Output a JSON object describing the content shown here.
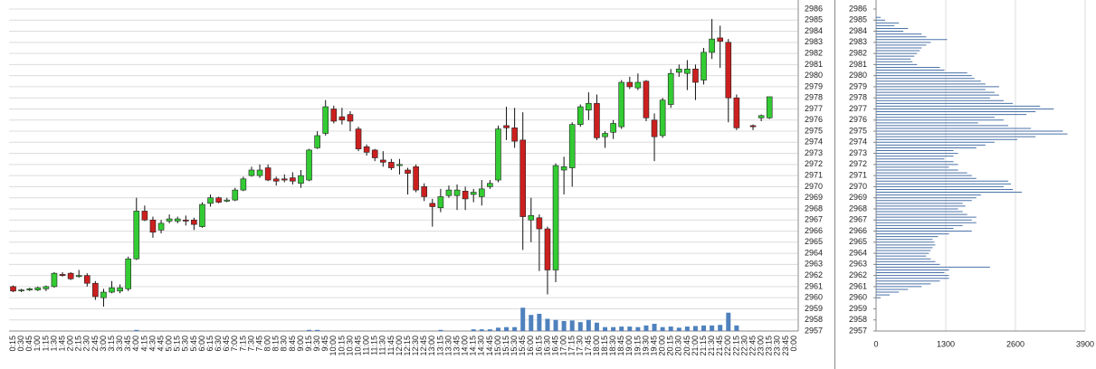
{
  "chart_data": [
    {
      "type": "candlestick",
      "categories": [
        "0:15",
        "0:30",
        "0:45",
        "1:00",
        "1:15",
        "1:30",
        "1:45",
        "2:00",
        "2:15",
        "2:30",
        "2:45",
        "3:00",
        "3:15",
        "3:30",
        "3:45",
        "4:00",
        "4:15",
        "4:30",
        "4:45",
        "5:00",
        "5:15",
        "5:30",
        "5:45",
        "6:00",
        "6:15",
        "6:30",
        "6:45",
        "7:00",
        "7:15",
        "7:30",
        "7:45",
        "8:00",
        "8:15",
        "8:30",
        "8:45",
        "9:00",
        "9:15",
        "9:30",
        "9:45",
        "10:00",
        "10:15",
        "10:30",
        "10:45",
        "11:00",
        "11:15",
        "11:30",
        "11:45",
        "12:00",
        "12:15",
        "12:30",
        "12:45",
        "13:00",
        "13:15",
        "13:30",
        "13:45",
        "14:00",
        "14:15",
        "14:30",
        "14:45",
        "15:00",
        "15:15",
        "15:30",
        "15:45",
        "16:00",
        "16:15",
        "16:30",
        "16:45",
        "17:00",
        "17:15",
        "17:30",
        "17:45",
        "18:00",
        "18:15",
        "18:30",
        "18:45",
        "19:00",
        "19:15",
        "19:30",
        "19:45",
        "20:00",
        "20:15",
        "20:30",
        "20:45",
        "21:00",
        "21:15",
        "21:30",
        "21:45",
        "22:00",
        "22:15",
        "22:30",
        "22:45",
        "23:00",
        "23:15",
        "23:30",
        "23:45",
        "0:00"
      ],
      "open": [
        2961.0,
        2960.7,
        2960.7,
        2960.7,
        2960.8,
        2961.0,
        2962.1,
        2962.2,
        2961.9,
        2962.0,
        2961.3,
        2960.0,
        2960.5,
        2960.6,
        2960.8,
        2963.5,
        2967.8,
        2967.0,
        2966.1,
        2966.9,
        2966.9,
        2967.0,
        2967.0,
        2966.4,
        2968.5,
        2969.0,
        2968.7,
        2968.8,
        2969.7,
        2971.0,
        2971.0,
        2971.7,
        2970.7,
        2970.7,
        2970.8,
        2970.3,
        2970.6,
        2973.5,
        2974.8,
        2977.0,
        2976.3,
        2976.5,
        2975.2,
        2973.6,
        2973.3,
        2972.4,
        2972.2,
        2971.9,
        2971.5,
        2971.8,
        2970.0,
        2968.5,
        2968.1,
        2969.2,
        2969.2,
        2969.6,
        2969.3,
        2969.1,
        2970.0,
        2970.6,
        2975.5,
        2975.3,
        2974.2,
        2967.0,
        2967.2,
        2966.2,
        2962.5,
        2971.5,
        2971.7,
        2975.6,
        2976.9,
        2977.5,
        2974.5,
        2974.9,
        2975.4,
        2979.4,
        2978.9,
        2979.5,
        2976.0,
        2974.6,
        2977.4,
        2980.3,
        2980.2,
        2980.6,
        2979.6,
        2982.1,
        2983.4,
        2983.0,
        2978.0,
        null,
        2975.5,
        2976.2,
        2976.2,
        null,
        null,
        null
      ],
      "high": [
        2961.1,
        2960.8,
        2960.9,
        2961.0,
        2961.1,
        2962.3,
        2962.3,
        2962.3,
        2962.5,
        2962.2,
        2961.5,
        2960.8,
        2961.5,
        2961.2,
        2963.7,
        2969.0,
        2968.3,
        2967.3,
        2967.0,
        2967.5,
        2967.3,
        2967.4,
        2967.2,
        2968.6,
        2969.3,
        2969.1,
        2969.0,
        2969.9,
        2970.9,
        2971.8,
        2972.0,
        2972.0,
        2970.9,
        2971.1,
        2971.3,
        2971.5,
        2973.4,
        2975.0,
        2977.8,
        2977.3,
        2977.1,
        2976.8,
        2975.4,
        2973.8,
        2973.4,
        2973.2,
        2972.5,
        2972.5,
        2971.7,
        2972.0,
        2970.3,
        2968.9,
        2969.8,
        2970.1,
        2970.2,
        2970.0,
        2969.8,
        2970.6,
        2970.6,
        2975.5,
        2977.2,
        2977.1,
        2976.7,
        2969.0,
        2967.5,
        2966.4,
        2972.1,
        2972.7,
        2975.8,
        2977.4,
        2978.5,
        2978.3,
        2975.0,
        2976.0,
        2979.6,
        2979.9,
        2980.2,
        2979.6,
        2976.6,
        2978.0,
        2980.6,
        2981.0,
        2981.4,
        2981.0,
        2982.5,
        2985.1,
        2984.5,
        2983.3,
        2978.3,
        null,
        2975.6,
        2976.5,
        2978.1,
        null,
        null,
        null
      ],
      "low": [
        2960.5,
        2960.5,
        2960.6,
        2960.6,
        2960.6,
        2960.9,
        2961.9,
        2961.6,
        2961.8,
        2961.0,
        2959.8,
        2959.2,
        2960.4,
        2960.4,
        2960.6,
        2963.4,
        2966.9,
        2965.4,
        2965.8,
        2966.7,
        2966.7,
        2966.5,
        2966.1,
        2966.3,
        2968.2,
        2968.5,
        2968.6,
        2968.7,
        2969.6,
        2970.9,
        2970.8,
        2970.5,
        2970.1,
        2970.4,
        2970.2,
        2969.9,
        2970.5,
        2973.4,
        2974.6,
        2975.7,
        2975.6,
        2975.0,
        2973.2,
        2972.8,
        2972.3,
        2971.8,
        2971.5,
        2971.1,
        2969.3,
        2969.5,
        2968.7,
        2966.4,
        2967.7,
        2969.0,
        2967.9,
        2967.9,
        2968.6,
        2968.3,
        2969.8,
        2970.4,
        2974.2,
        2973.5,
        2964.3,
        2965.0,
        2962.4,
        2960.3,
        2961.4,
        2969.3,
        2970.0,
        2975.4,
        2976.0,
        2974.2,
        2973.5,
        2974.3,
        2975.2,
        2978.8,
        2978.7,
        2975.9,
        2972.3,
        2974.4,
        2977.1,
        2979.9,
        2978.7,
        2977.8,
        2979.2,
        2981.5,
        2980.7,
        2975.8,
        2975.1,
        null,
        2975.1,
        2975.9,
        2976.1,
        null,
        null,
        null
      ],
      "close": [
        2960.6,
        2960.7,
        2960.8,
        2960.9,
        2961.0,
        2962.2,
        2962.0,
        2961.7,
        2962.0,
        2961.3,
        2960.1,
        2960.5,
        2960.9,
        2960.9,
        2963.5,
        2967.8,
        2967.0,
        2965.9,
        2966.7,
        2967.1,
        2967.1,
        2966.9,
        2966.6,
        2968.4,
        2969.0,
        2968.6,
        2968.8,
        2969.7,
        2970.7,
        2971.5,
        2971.5,
        2970.6,
        2970.5,
        2970.6,
        2970.5,
        2971.0,
        2973.3,
        2974.6,
        2977.2,
        2975.9,
        2976.0,
        2975.9,
        2973.4,
        2973.1,
        2972.6,
        2972.2,
        2971.7,
        2972.0,
        2971.2,
        2969.7,
        2969.1,
        2968.2,
        2969.1,
        2969.7,
        2969.7,
        2968.9,
        2969.5,
        2969.8,
        2970.3,
        2975.2,
        2975.3,
        2974.1,
        2967.3,
        2967.4,
        2966.2,
        2962.5,
        2971.9,
        2971.8,
        2975.6,
        2977.2,
        2977.5,
        2974.4,
        2974.8,
        2975.7,
        2979.4,
        2979.0,
        2979.4,
        2976.2,
        2974.5,
        2977.8,
        2980.2,
        2980.6,
        2980.6,
        2979.4,
        2982.1,
        2983.3,
        2983.1,
        2978.0,
        2975.3,
        null,
        2975.4,
        2976.4,
        2978.1,
        null,
        null,
        null
      ],
      "volume": {
        "color": "#4f81bd",
        "values": [
          null,
          null,
          null,
          null,
          null,
          null,
          null,
          null,
          null,
          null,
          null,
          null,
          null,
          null,
          null,
          0.1,
          null,
          null,
          null,
          null,
          null,
          null,
          null,
          null,
          null,
          null,
          null,
          null,
          null,
          null,
          null,
          null,
          null,
          null,
          null,
          null,
          0.1,
          0.1,
          null,
          null,
          null,
          null,
          null,
          null,
          null,
          null,
          null,
          null,
          null,
          null,
          null,
          null,
          0.1,
          null,
          null,
          null,
          0.15,
          0.15,
          0.15,
          0.3,
          0.35,
          0.35,
          2.1,
          1.45,
          1.55,
          1.1,
          1.0,
          0.9,
          0.95,
          0.8,
          1.0,
          0.75,
          0.35,
          0.35,
          0.4,
          0.4,
          0.35,
          0.5,
          0.65,
          0.35,
          0.4,
          0.3,
          0.4,
          0.45,
          0.5,
          0.5,
          0.55,
          1.65,
          0.5,
          null,
          null,
          null,
          null,
          null,
          null,
          null
        ]
      },
      "up_color": "#33cc33",
      "down_color": "#cc1f1f",
      "ylim": [
        2957,
        2986
      ],
      "yticks": [
        2957,
        2958,
        2959,
        2960,
        2961,
        2962,
        2963,
        2964,
        2965,
        2966,
        2967,
        2968,
        2969,
        2970,
        2971,
        2972,
        2973,
        2974,
        2975,
        2976,
        2977,
        2978,
        2979,
        2980,
        2981,
        2982,
        2983,
        2984,
        2985,
        2986
      ],
      "grid": true
    },
    {
      "type": "profile",
      "y": [
        2960,
        2960.25,
        2960.5,
        2960.75,
        2961,
        2961.25,
        2961.5,
        2961.75,
        2962,
        2962.25,
        2962.5,
        2962.75,
        2963,
        2963.25,
        2963.5,
        2963.75,
        2964,
        2964.25,
        2964.5,
        2964.75,
        2965,
        2965.25,
        2965.5,
        2965.75,
        2966,
        2966.25,
        2966.5,
        2966.75,
        2967,
        2967.25,
        2967.5,
        2967.75,
        2968,
        2968.25,
        2968.5,
        2968.75,
        2969,
        2969.25,
        2969.5,
        2969.75,
        2970,
        2970.25,
        2970.5,
        2970.75,
        2971,
        2971.25,
        2971.5,
        2971.75,
        2972,
        2972.25,
        2972.5,
        2972.75,
        2973,
        2973.25,
        2973.5,
        2973.75,
        2974,
        2974.25,
        2974.5,
        2974.75,
        2975,
        2975.25,
        2975.5,
        2975.75,
        2976,
        2976.25,
        2976.5,
        2976.75,
        2977,
        2977.25,
        2977.5,
        2977.75,
        2978,
        2978.25,
        2978.5,
        2978.75,
        2979,
        2979.25,
        2979.5,
        2979.75,
        2980,
        2980.25,
        2980.5,
        2980.75,
        2981,
        2981.25,
        2981.5,
        2981.75,
        2982,
        2982.25,
        2982.5,
        2982.75,
        2983,
        2983.25,
        2983.5,
        2983.75,
        2984,
        2984.25,
        2984.5,
        2984.75,
        2985,
        2985.25
      ],
      "values": [
        85,
        255,
        425,
        595,
        850,
        1020,
        1190,
        1360,
        1360,
        1275,
        1360,
        2125,
        1190,
        1105,
        1020,
        935,
        986,
        1020,
        1054,
        1105,
        1088,
        1054,
        1156,
        1360,
        1785,
        1445,
        1615,
        1870,
        1785,
        1870,
        1700,
        1615,
        1530,
        1666,
        1615,
        1785,
        1870,
        1955,
        2720,
        2550,
        2380,
        2516,
        2465,
        1870,
        1785,
        1700,
        1530,
        1360,
        1530,
        1445,
        1275,
        1445,
        1530,
        1445,
        1870,
        2040,
        2210,
        2635,
        2975,
        3570,
        3485,
        2890,
        2465,
        1904,
        2380,
        2210,
        2805,
        2975,
        3315,
        3060,
        2550,
        2380,
        2125,
        2295,
        2210,
        2040,
        2295,
        2040,
        1955,
        1836,
        1785,
        1700,
        1275,
        1190,
        765,
        680,
        646,
        714,
        765,
        816,
        850,
        935,
        1020,
        1326,
        935,
        850,
        510,
        595,
        340,
        425,
        170,
        85
      ],
      "color": "#4a72a8",
      "xlim": [
        0,
        3900
      ],
      "xticks": [
        0,
        1300,
        2600,
        3900
      ],
      "ylim": [
        2957,
        2986
      ],
      "yticks": [
        2957,
        2958,
        2959,
        2960,
        2961,
        2962,
        2963,
        2964,
        2965,
        2966,
        2967,
        2968,
        2969,
        2970,
        2971,
        2972,
        2973,
        2974,
        2975,
        2976,
        2977,
        2978,
        2979,
        2980,
        2981,
        2982,
        2983,
        2984,
        2985,
        2986
      ],
      "grid": true
    }
  ]
}
